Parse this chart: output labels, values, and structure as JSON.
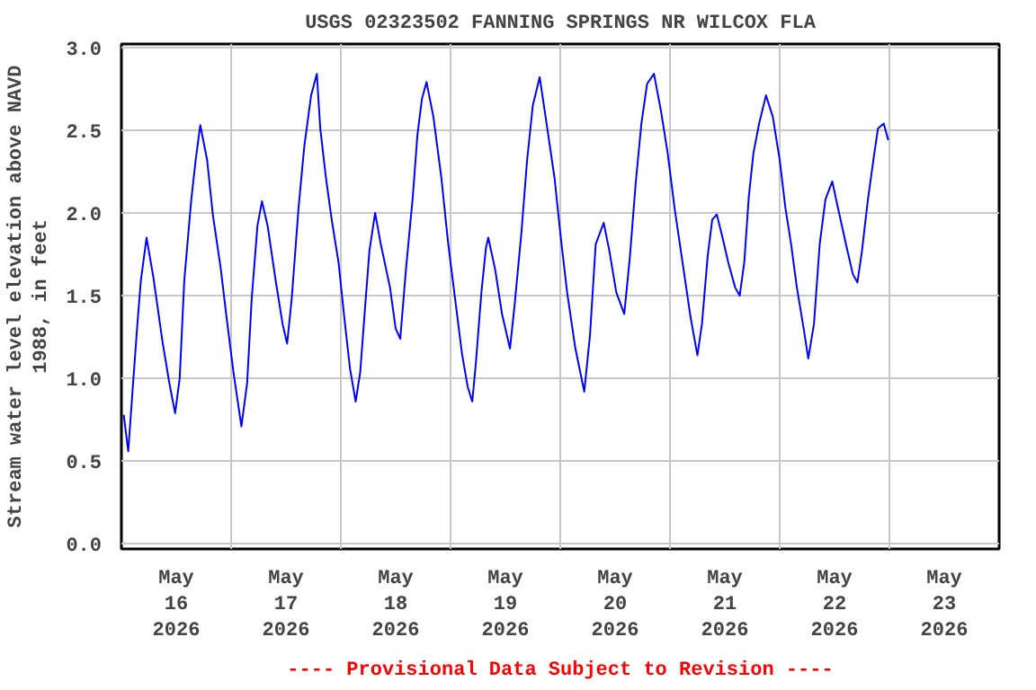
{
  "chart_data": {
    "type": "line",
    "title": "USGS 02323502 FANNING SPRINGS NR WILCOX FLA",
    "ylabel": "Stream water level elevation above NAVD\n1988, in feet",
    "annotations": [
      "---- Provisional Data Subject to Revision ----"
    ],
    "x": [
      "2026-05-16T00:30",
      "2026-05-16T01:30",
      "2026-05-16T02:30",
      "2026-05-16T03:30",
      "2026-05-16T04:15",
      "2026-05-16T05:30",
      "2026-05-16T07:00",
      "2026-05-16T09:00",
      "2026-05-16T10:30",
      "2026-05-16T11:45",
      "2026-05-16T12:45",
      "2026-05-16T13:45",
      "2026-05-16T15:15",
      "2026-05-16T16:15",
      "2026-05-16T17:15",
      "2026-05-16T18:45",
      "2026-05-16T20:00",
      "2026-05-16T21:45",
      "2026-05-16T23:00",
      "2026-05-17T00:30",
      "2026-05-17T02:15",
      "2026-05-17T03:30",
      "2026-05-17T04:30",
      "2026-05-17T05:45",
      "2026-05-17T06:45",
      "2026-05-17T08:00",
      "2026-05-17T09:45",
      "2026-05-17T11:15",
      "2026-05-17T12:15",
      "2026-05-17T13:15",
      "2026-05-17T14:45",
      "2026-05-17T16:00",
      "2026-05-17T17:30",
      "2026-05-17T18:45",
      "2026-05-17T19:30",
      "2026-05-17T20:45",
      "2026-05-17T22:00",
      "2026-05-17T23:30",
      "2026-05-18T00:45",
      "2026-05-18T02:00",
      "2026-05-18T03:15",
      "2026-05-18T04:15",
      "2026-05-18T05:15",
      "2026-05-18T06:15",
      "2026-05-18T07:30",
      "2026-05-18T08:45",
      "2026-05-18T10:45",
      "2026-05-18T12:00",
      "2026-05-18T13:00",
      "2026-05-18T14:15",
      "2026-05-18T15:45",
      "2026-05-18T16:45",
      "2026-05-18T17:45",
      "2026-05-18T18:45",
      "2026-05-18T20:15",
      "2026-05-18T22:00",
      "2026-05-18T23:30",
      "2026-05-19T01:00",
      "2026-05-19T02:30",
      "2026-05-19T03:45",
      "2026-05-19T04:45",
      "2026-05-19T05:30",
      "2026-05-19T06:45",
      "2026-05-19T07:45",
      "2026-05-19T08:15",
      "2026-05-19T09:45",
      "2026-05-19T11:15",
      "2026-05-19T13:00",
      "2026-05-19T14:00",
      "2026-05-19T15:30",
      "2026-05-19T16:45",
      "2026-05-19T18:00",
      "2026-05-19T19:30",
      "2026-05-19T21:00",
      "2026-05-19T22:45",
      "2026-05-20T00:00",
      "2026-05-20T01:30",
      "2026-05-20T03:15",
      "2026-05-20T05:15",
      "2026-05-20T06:30",
      "2026-05-20T07:45",
      "2026-05-20T09:30",
      "2026-05-20T10:45",
      "2026-05-20T12:15",
      "2026-05-20T14:00",
      "2026-05-20T15:15",
      "2026-05-20T16:30",
      "2026-05-20T17:45",
      "2026-05-20T19:00",
      "2026-05-20T20:30",
      "2026-05-20T22:00",
      "2026-05-20T23:30",
      "2026-05-21T01:00",
      "2026-05-21T02:45",
      "2026-05-21T04:30",
      "2026-05-21T06:00",
      "2026-05-21T07:00",
      "2026-05-21T08:15",
      "2026-05-21T09:15",
      "2026-05-21T10:15",
      "2026-05-21T11:30",
      "2026-05-21T12:45",
      "2026-05-21T14:15",
      "2026-05-21T15:15",
      "2026-05-21T16:15",
      "2026-05-21T17:15",
      "2026-05-21T18:15",
      "2026-05-21T19:30",
      "2026-05-21T21:00",
      "2026-05-21T22:30",
      "2026-05-22T00:00",
      "2026-05-22T01:15",
      "2026-05-22T02:30",
      "2026-05-22T03:45",
      "2026-05-22T05:15",
      "2026-05-22T06:15",
      "2026-05-22T07:30",
      "2026-05-22T08:45",
      "2026-05-22T10:00",
      "2026-05-22T11:30",
      "2026-05-22T12:45",
      "2026-05-22T14:30",
      "2026-05-22T16:00",
      "2026-05-22T17:00",
      "2026-05-22T18:00",
      "2026-05-22T19:15",
      "2026-05-22T20:30",
      "2026-05-22T21:30",
      "2026-05-22T22:45",
      "2026-05-22T23:45"
    ],
    "series": [
      {
        "color": "#0000ff",
        "values": [
          0.78,
          0.56,
          0.95,
          1.33,
          1.59,
          1.85,
          1.61,
          1.22,
          0.97,
          0.79,
          1.0,
          1.59,
          2.07,
          2.32,
          2.53,
          2.32,
          1.99,
          1.66,
          1.37,
          1.04,
          0.71,
          0.97,
          1.48,
          1.92,
          2.07,
          1.92,
          1.59,
          1.33,
          1.21,
          1.48,
          2.03,
          2.4,
          2.71,
          2.84,
          2.51,
          2.21,
          1.96,
          1.7,
          1.37,
          1.06,
          0.86,
          1.04,
          1.41,
          1.77,
          2.0,
          1.81,
          1.55,
          1.3,
          1.24,
          1.66,
          2.1,
          2.47,
          2.69,
          2.79,
          2.58,
          2.21,
          1.81,
          1.48,
          1.15,
          0.95,
          0.86,
          1.08,
          1.52,
          1.79,
          1.85,
          1.66,
          1.39,
          1.18,
          1.44,
          1.88,
          2.32,
          2.65,
          2.82,
          2.54,
          2.21,
          1.88,
          1.52,
          1.19,
          0.92,
          1.26,
          1.81,
          1.94,
          1.77,
          1.52,
          1.39,
          1.74,
          2.18,
          2.54,
          2.78,
          2.84,
          2.62,
          2.36,
          2.03,
          1.7,
          1.37,
          1.14,
          1.33,
          1.74,
          1.96,
          1.99,
          1.85,
          1.7,
          1.55,
          1.5,
          1.7,
          2.1,
          2.36,
          2.54,
          2.71,
          2.58,
          2.32,
          2.03,
          1.81,
          1.55,
          1.3,
          1.12,
          1.33,
          1.81,
          2.08,
          2.19,
          2.03,
          1.81,
          1.63,
          1.58,
          1.77,
          2.07,
          2.32,
          2.51,
          2.54,
          2.44
        ]
      }
    ],
    "xlim": [
      "2026-05-16T00:00",
      "2026-05-24T00:00"
    ],
    "xticks": [
      {
        "value": "2026-05-16T12:00",
        "label": "May\n16\n2026"
      },
      {
        "value": "2026-05-17T12:00",
        "label": "May\n17\n2026"
      },
      {
        "value": "2026-05-18T12:00",
        "label": "May\n18\n2026"
      },
      {
        "value": "2026-05-19T12:00",
        "label": "May\n19\n2026"
      },
      {
        "value": "2026-05-20T12:00",
        "label": "May\n20\n2026"
      },
      {
        "value": "2026-05-21T12:00",
        "label": "May\n21\n2026"
      },
      {
        "value": "2026-05-22T12:00",
        "label": "May\n22\n2026"
      },
      {
        "value": "2026-05-23T12:00",
        "label": "May\n23\n2026"
      },
      {
        "value": "2026-05-17T00:00",
        "label": null
      },
      {
        "value": "2026-05-18T00:00",
        "label": null
      },
      {
        "value": "2026-05-19T00:00",
        "label": null
      },
      {
        "value": "2026-05-20T00:00",
        "label": null
      },
      {
        "value": "2026-05-21T00:00",
        "label": null
      },
      {
        "value": "2026-05-22T00:00",
        "label": null
      },
      {
        "value": "2026-05-23T00:00",
        "label": null
      }
    ],
    "ylim": [
      -0.03,
      3.02
    ],
    "yticks": [
      {
        "value": 0,
        "label": "0.0"
      },
      {
        "value": 0.5,
        "label": "0.5"
      },
      {
        "value": 1,
        "label": "1.0"
      },
      {
        "value": 1.5,
        "label": "1.5"
      },
      {
        "value": 2,
        "label": "2.0"
      },
      {
        "value": 2.5,
        "label": "2.5"
      },
      {
        "value": 3,
        "label": "3.0"
      }
    ],
    "grid": true
  }
}
